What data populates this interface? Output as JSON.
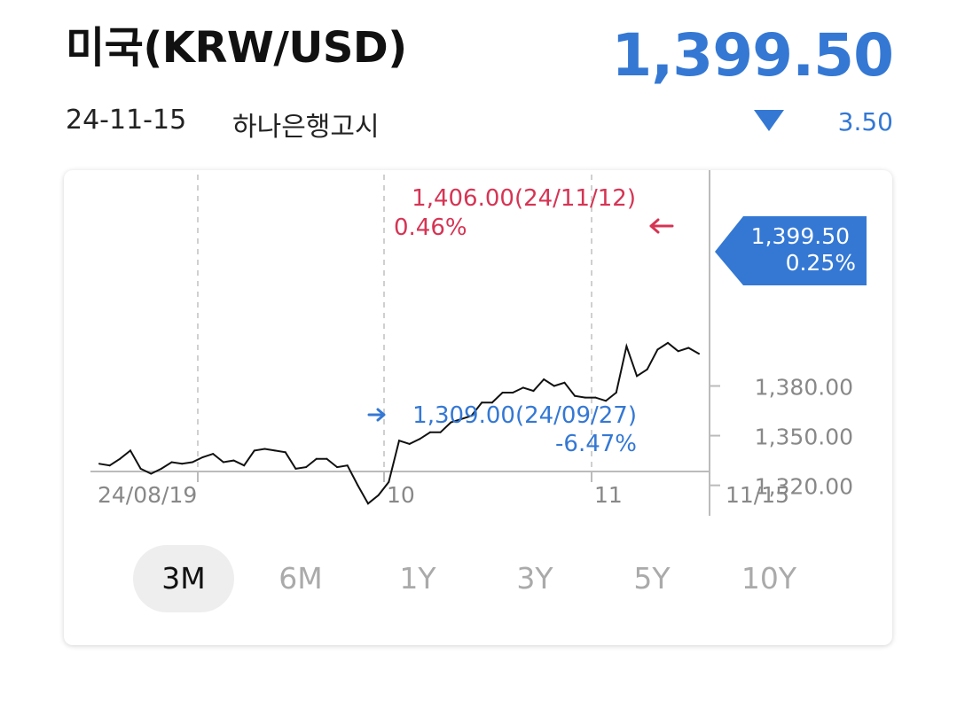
{
  "header": {
    "title": "미국(KRW/USD)",
    "price": "1,399.50",
    "date": "24-11-15",
    "source": "하나은행고시",
    "change": "3.50",
    "change_direction": "down",
    "change_icon": "down-triangle-icon"
  },
  "chart_data": {
    "type": "line",
    "x_ticks": [
      "24/08/19",
      "10",
      "11",
      "11/15"
    ],
    "y_ticks": [
      "1,320.00",
      "1,350.00",
      "1,380.00"
    ],
    "ylim": [
      1300,
      1412
    ],
    "series": [
      {
        "values": [
          1333,
          1332,
          1336,
          1341,
          1330,
          1327,
          1330,
          1334,
          1333,
          1334,
          1337,
          1339,
          1334,
          1335,
          1332,
          1341,
          1342,
          1341,
          1340,
          1330,
          1331,
          1336,
          1336,
          1331,
          1332,
          1320,
          1309,
          1314,
          1322,
          1347,
          1345,
          1348,
          1352,
          1352,
          1358,
          1360,
          1362,
          1370,
          1370,
          1376,
          1376,
          1379,
          1377,
          1384,
          1380,
          1382,
          1374,
          1373,
          1373,
          1371,
          1376,
          1404,
          1386,
          1390,
          1402,
          1406,
          1401,
          1403,
          1399.5
        ]
      }
    ],
    "max_annotation": {
      "value": "1,406.00(24/11/12)",
      "pct": "0.46%",
      "color": "#d63454"
    },
    "min_annotation": {
      "value": "1,309.00(24/09/27)",
      "pct": "-6.47%",
      "color": "#3478d4"
    },
    "current_label": {
      "value": "1,399.50",
      "pct": "0.25%",
      "color": "#3478d4"
    },
    "grid": "vertical-dashed",
    "line_color": "#111111"
  },
  "periods": [
    {
      "label": "3M",
      "active": true
    },
    {
      "label": "6M",
      "active": false
    },
    {
      "label": "1Y",
      "active": false
    },
    {
      "label": "3Y",
      "active": false
    },
    {
      "label": "5Y",
      "active": false
    },
    {
      "label": "10Y",
      "active": false
    }
  ]
}
